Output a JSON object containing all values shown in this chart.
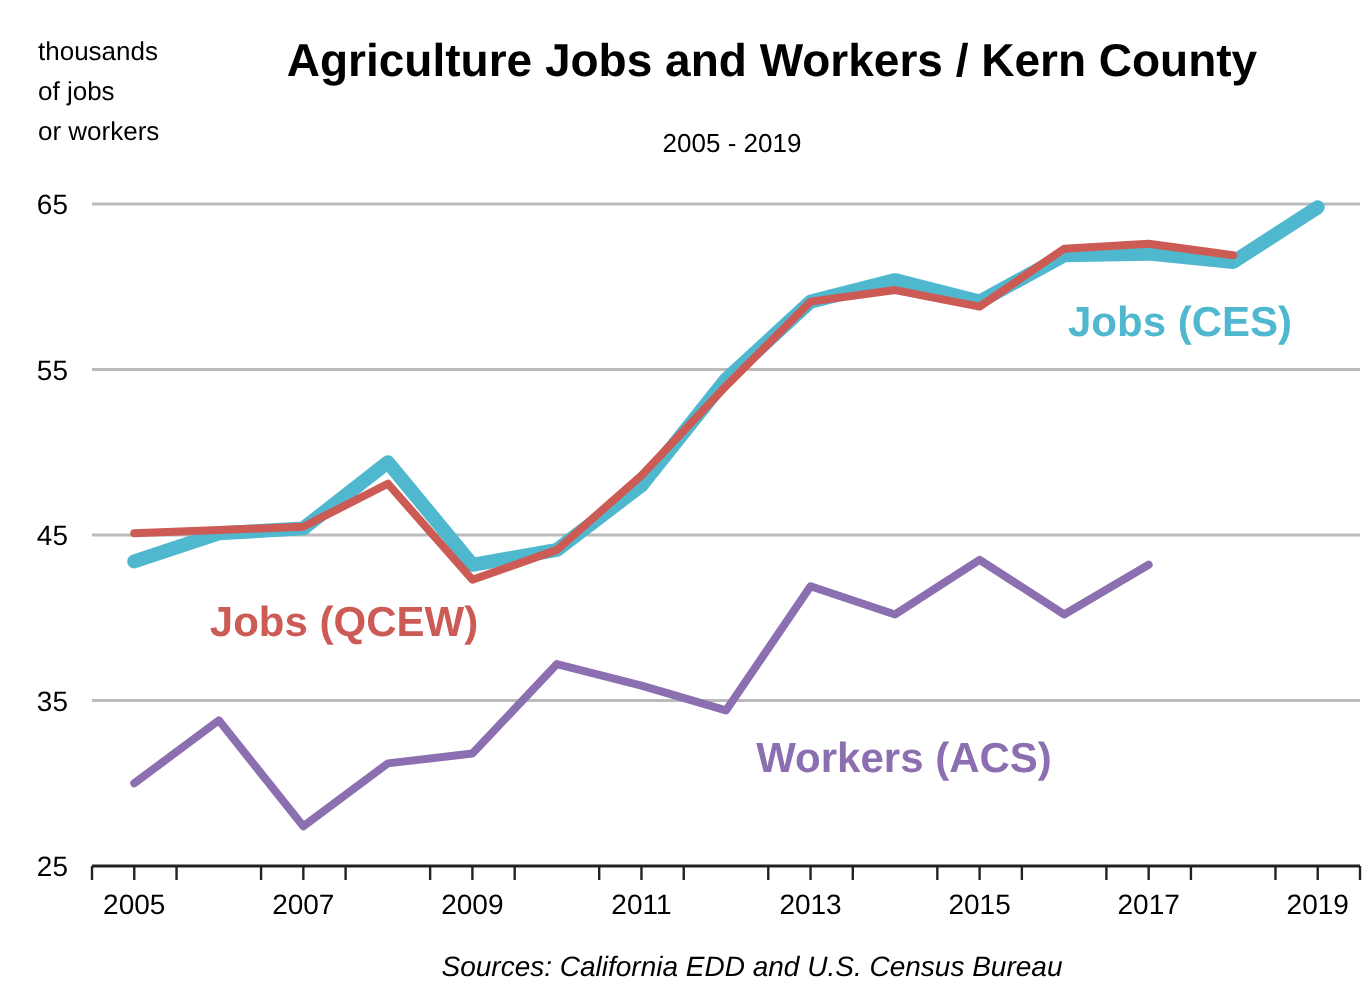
{
  "chart_data": {
    "type": "line",
    "title": "Agriculture Jobs and Workers / Kern County",
    "subtitle": "2005 - 2019",
    "ylabel": "thousands\nof jobs\nor workers",
    "x": [
      2005,
      2006,
      2007,
      2008,
      2009,
      2010,
      2011,
      2012,
      2013,
      2014,
      2015,
      2016,
      2017,
      2018,
      2019
    ],
    "series": [
      {
        "name": "Jobs (CES)",
        "color": "#4fb8cf",
        "values": [
          43.4,
          45.1,
          45.4,
          49.4,
          43.2,
          44.1,
          48.0,
          54.4,
          59.1,
          60.4,
          59.1,
          61.9,
          62.0,
          61.5,
          64.8
        ]
      },
      {
        "name": "Jobs (QCEW)",
        "color": "#cc5b55",
        "values": [
          45.1,
          45.3,
          45.5,
          48.1,
          42.3,
          44.1,
          48.6,
          54.0,
          59.1,
          59.8,
          58.8,
          62.3,
          62.6,
          61.9,
          null
        ]
      },
      {
        "name": "Workers (ACS)",
        "color": "#8c6fb0",
        "values": [
          30.0,
          33.8,
          27.4,
          31.2,
          31.8,
          37.2,
          35.9,
          34.4,
          41.9,
          40.2,
          43.5,
          40.2,
          43.2,
          null,
          null
        ]
      }
    ],
    "xlim": [
      2004.5,
      2019.5
    ],
    "xticks": [
      {
        "value": 2004.5,
        "label": null
      },
      2005,
      {
        "value": 2005.5,
        "label": null
      },
      {
        "value": 2006.5,
        "label": null
      },
      2007,
      {
        "value": 2007.5,
        "label": null
      },
      {
        "value": 2008.5,
        "label": null
      },
      2009,
      {
        "value": 2009.5,
        "label": null
      },
      {
        "value": 2010.5,
        "label": null
      },
      2011,
      {
        "value": 2011.5,
        "label": null
      },
      {
        "value": 2012.5,
        "label": null
      },
      2013,
      {
        "value": 2013.5,
        "label": null
      },
      {
        "value": 2014.5,
        "label": null
      },
      2015,
      {
        "value": 2015.5,
        "label": null
      },
      {
        "value": 2016.5,
        "label": null
      },
      2017,
      {
        "value": 2017.5,
        "label": null
      },
      {
        "value": 2018.5,
        "label": null
      },
      2019,
      {
        "value": 2019.5,
        "label": null
      }
    ],
    "ylim": [
      25,
      65
    ],
    "yticks": [
      25,
      35,
      45,
      55,
      65
    ],
    "grid": "y",
    "annotations": [
      "Sources: California EDD and U.S. Census Bureau"
    ]
  }
}
